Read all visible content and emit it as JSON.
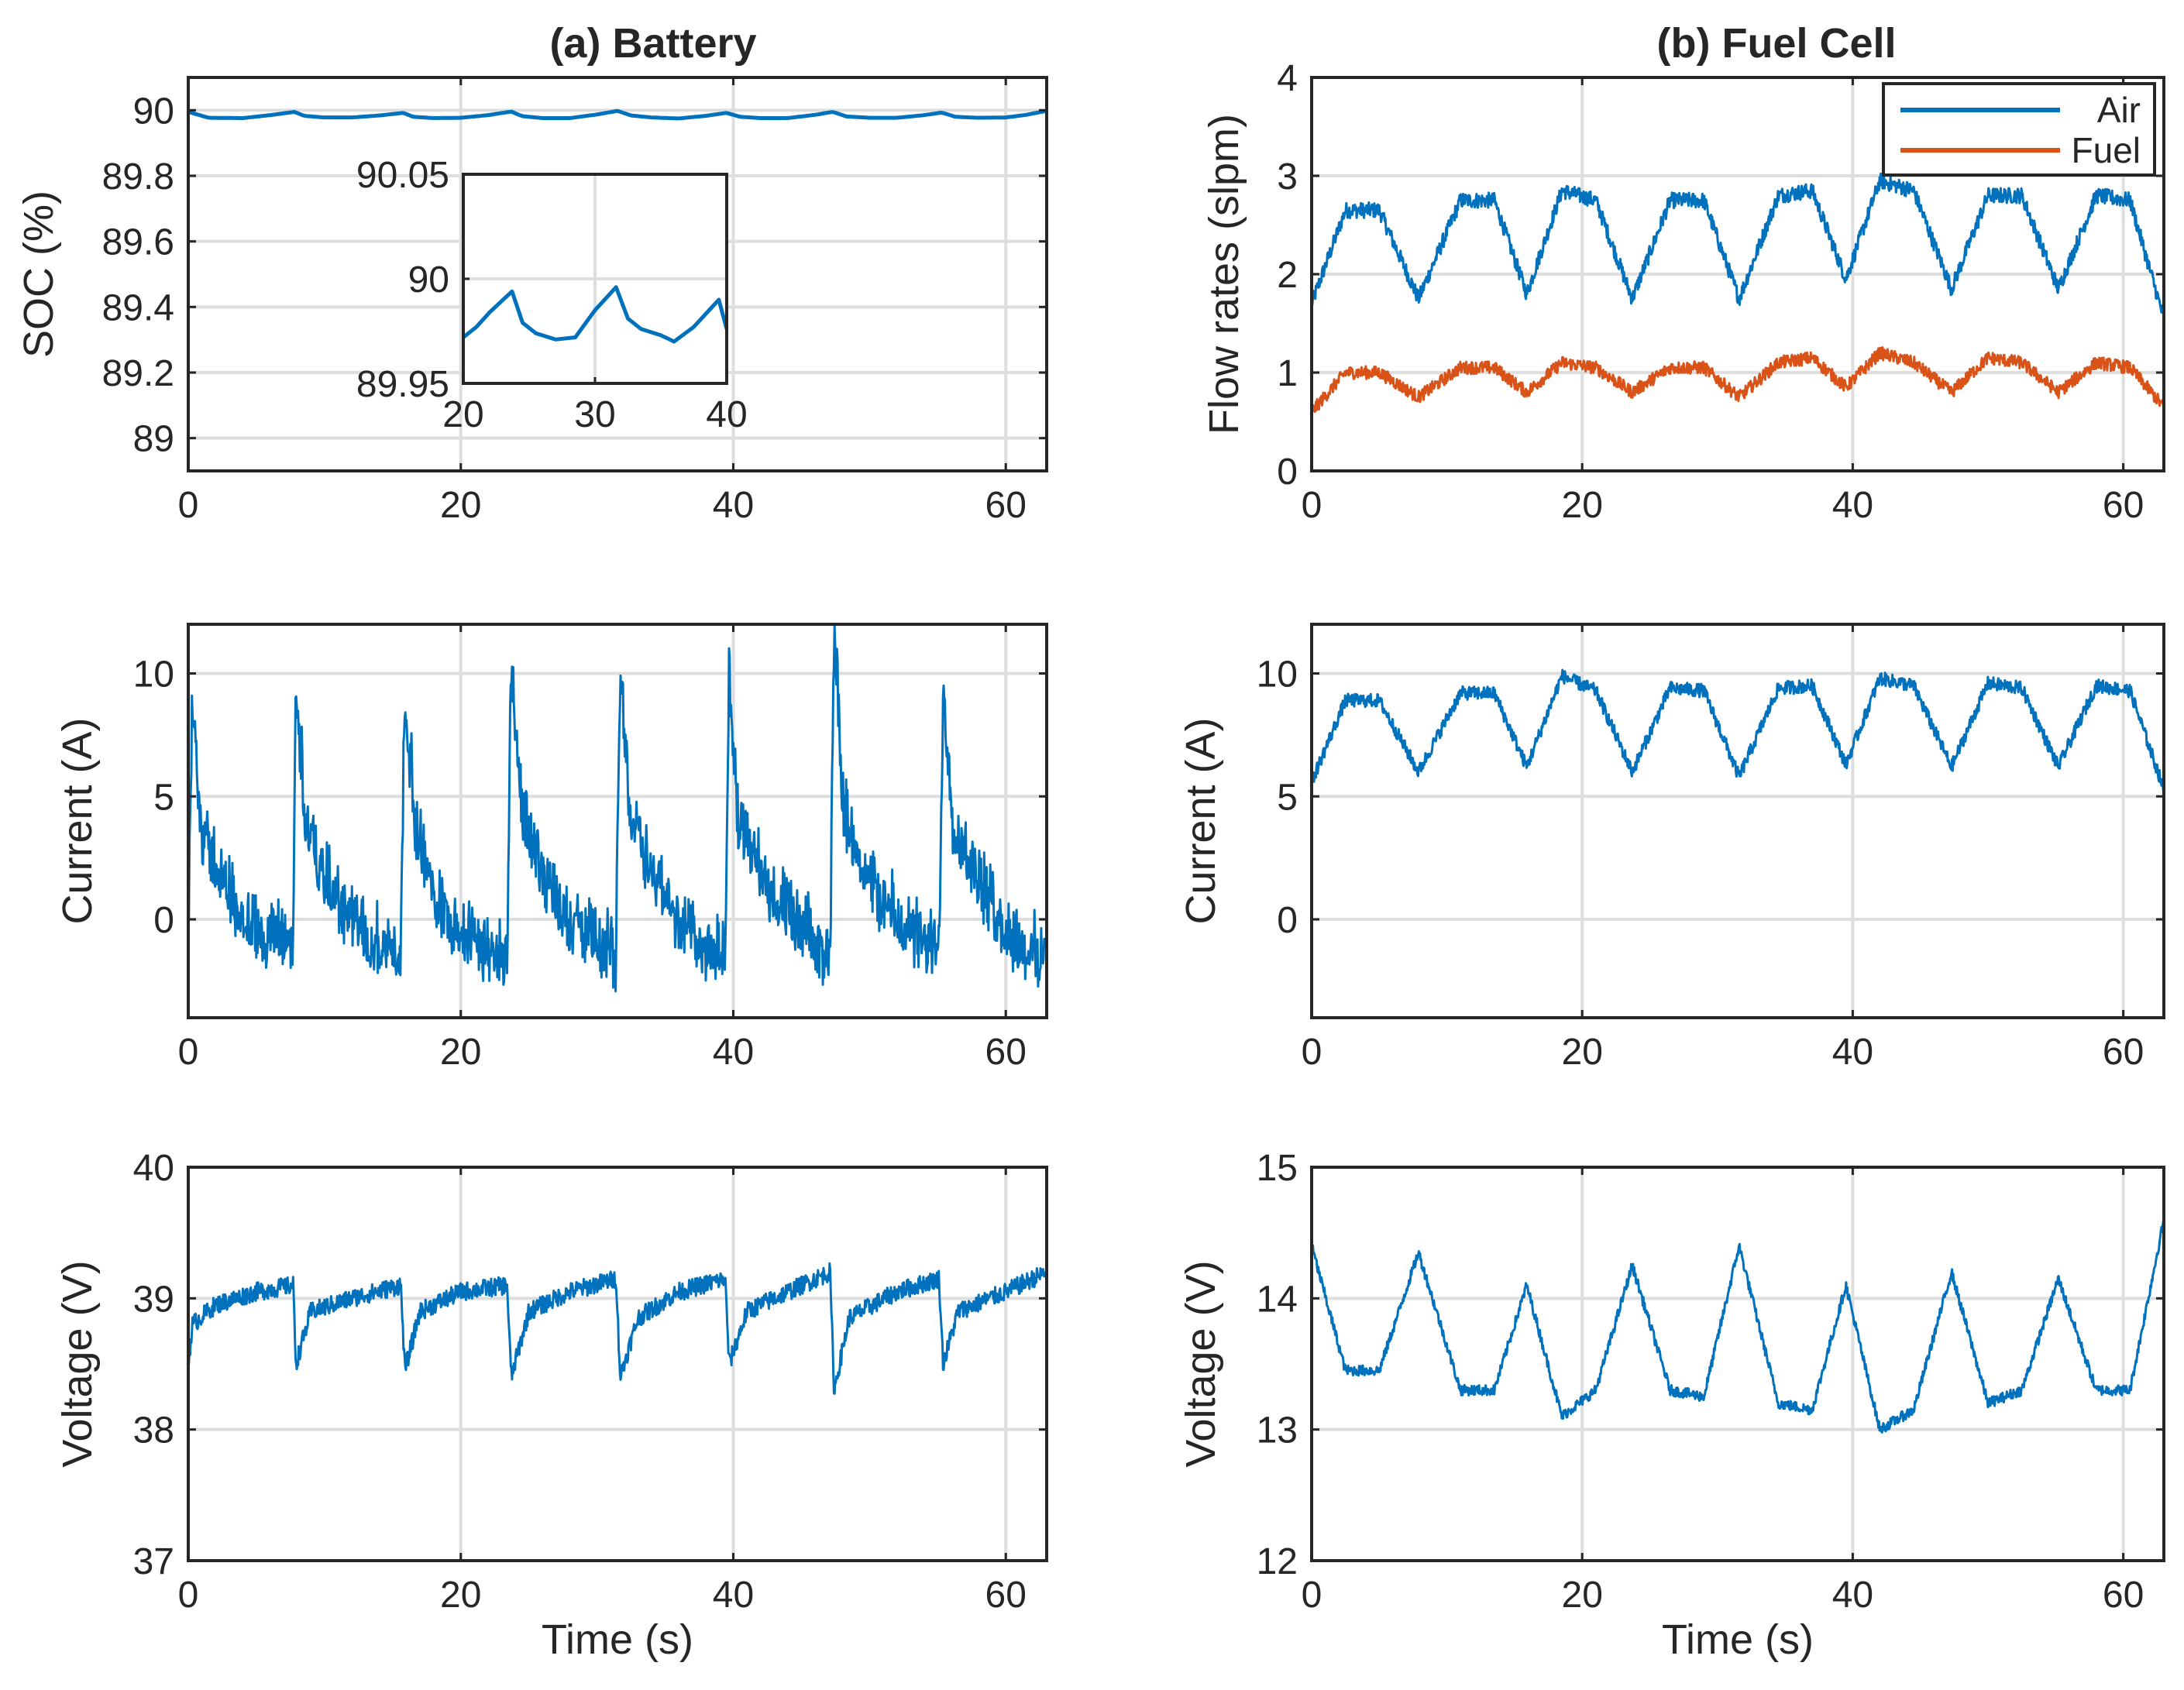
{
  "figure": {
    "title_left": "(a) Battery",
    "title_right": "(b) Fuel Cell"
  },
  "colors": {
    "blue": "#0072BD",
    "orange": "#D95319",
    "grid": "#DEDEDE",
    "axes": "#262626"
  },
  "chart_data": [
    {
      "id": "battery-soc",
      "type": "line",
      "title": "(a) Battery",
      "xlabel": "",
      "ylabel": "SOC (%)",
      "xlim": [
        0,
        63
      ],
      "ylim": [
        88.9,
        90.1
      ],
      "xticks": [
        0,
        20,
        40,
        60
      ],
      "xtick_labels": [
        "0",
        "20",
        "40",
        "60"
      ],
      "yticks": [
        89,
        89.2,
        89.4,
        89.6,
        89.8,
        90
      ],
      "ytick_labels": [
        "89",
        "89.2",
        "89.4",
        "89.6",
        "89.8",
        "90"
      ],
      "grid": true,
      "series": [
        {
          "name": "SOC",
          "color": "#0072BD",
          "x": [
            0,
            1.5,
            4,
            6,
            7.8,
            8.5,
            10,
            12,
            14,
            15.8,
            16.5,
            18,
            20,
            22,
            23.7,
            24.5,
            26,
            28,
            30,
            31.5,
            32.5,
            34,
            36,
            38,
            39.5,
            40.5,
            42,
            44,
            46,
            47.3,
            48.3,
            50,
            52,
            54,
            55.3,
            56.3,
            58,
            60,
            61.5,
            63
          ],
          "values": [
            89.995,
            89.977,
            89.976,
            89.985,
            89.995,
            89.983,
            89.978,
            89.978,
            89.984,
            89.992,
            89.98,
            89.976,
            89.977,
            89.985,
            89.996,
            89.982,
            89.976,
            89.976,
            89.987,
            89.998,
            89.984,
            89.978,
            89.975,
            89.983,
            89.992,
            89.98,
            89.976,
            89.976,
            89.986,
            89.995,
            89.981,
            89.977,
            89.977,
            89.985,
            89.993,
            89.98,
            89.977,
            89.978,
            89.986,
            89.998
          ]
        }
      ],
      "inset": {
        "xlim": [
          20,
          40
        ],
        "ylim": [
          89.95,
          90.05
        ],
        "xticks": [
          20,
          30,
          40
        ],
        "xtick_labels": [
          "20",
          "30",
          "40"
        ],
        "yticks": [
          89.95,
          90,
          90.05
        ],
        "ytick_labels": [
          "89.95",
          "90",
          "90.05"
        ],
        "x": [
          20,
          21,
          22,
          23.7,
          24.5,
          25.5,
          27,
          28.5,
          30,
          31.6,
          32.5,
          33.5,
          35,
          36,
          37.5,
          39.4,
          40
        ],
        "values": [
          89.972,
          89.977,
          89.984,
          89.994,
          89.979,
          89.974,
          89.971,
          89.972,
          89.985,
          89.996,
          89.981,
          89.976,
          89.973,
          89.97,
          89.977,
          89.99,
          89.976
        ]
      }
    },
    {
      "id": "fc-flow",
      "type": "line",
      "title": "(b) Fuel Cell",
      "xlabel": "",
      "ylabel": "Flow rates (slpm)",
      "xlim": [
        0,
        63
      ],
      "ylim": [
        0,
        4
      ],
      "xticks": [
        0,
        20,
        40,
        60
      ],
      "xtick_labels": [
        "0",
        "20",
        "40",
        "60"
      ],
      "yticks": [
        0,
        1,
        2,
        3,
        4
      ],
      "ytick_labels": [
        "0",
        "1",
        "2",
        "3",
        "4"
      ],
      "grid": true,
      "legend": {
        "position": "top-right",
        "entries": [
          "Air",
          "Fuel"
        ]
      },
      "series": [
        {
          "name": "Air",
          "color": "#0072BD",
          "x": [
            0,
            2.5,
            5,
            7.9,
            11,
            13.5,
            15.9,
            18.5,
            21,
            23.7,
            26.5,
            29,
            31.6,
            34.5,
            37,
            39.5,
            42,
            44.5,
            47.3,
            50,
            52.5,
            55.2,
            58,
            60.5,
            63
          ],
          "values": [
            1.7,
            2.65,
            2.65,
            1.75,
            2.75,
            2.75,
            1.8,
            2.85,
            2.75,
            1.75,
            2.75,
            2.75,
            1.75,
            2.8,
            2.85,
            1.95,
            2.95,
            2.85,
            1.85,
            2.8,
            2.8,
            1.85,
            2.8,
            2.75,
            1.55
          ]
        },
        {
          "name": "Fuel",
          "color": "#D95319",
          "x": [
            0,
            2.5,
            5,
            7.9,
            11,
            13.5,
            15.9,
            18.5,
            21,
            23.7,
            26.5,
            29,
            31.6,
            34.5,
            37,
            39.5,
            42,
            44.5,
            47.3,
            50,
            52.5,
            55.2,
            58,
            60.5,
            63
          ],
          "values": [
            0.6,
            1.0,
            1.0,
            0.75,
            1.05,
            1.05,
            0.8,
            1.1,
            1.05,
            0.8,
            1.05,
            1.05,
            0.75,
            1.1,
            1.15,
            0.85,
            1.2,
            1.1,
            0.8,
            1.15,
            1.1,
            0.8,
            1.1,
            1.05,
            0.65
          ]
        }
      ]
    },
    {
      "id": "battery-current",
      "type": "line",
      "title": "",
      "xlabel": "",
      "ylabel": "Current (A)",
      "xlim": [
        0,
        63
      ],
      "ylim": [
        -4,
        12
      ],
      "xticks": [
        0,
        20,
        40,
        60
      ],
      "xtick_labels": [
        "0",
        "20",
        "40",
        "60"
      ],
      "yticks": [
        0,
        5,
        10
      ],
      "ytick_labels": [
        "0",
        "5",
        "10"
      ],
      "grid": true,
      "series": [
        {
          "name": "Battery current",
          "color": "#0072BD",
          "x": [
            0,
            0.3,
            1,
            3,
            5,
            7.7,
            7.9,
            8.6,
            10,
            12,
            14,
            15.6,
            15.9,
            16.6,
            18,
            20,
            22,
            23.4,
            23.7,
            24.4,
            26,
            28,
            30,
            31.4,
            31.7,
            32.4,
            34,
            36,
            38,
            39.4,
            39.7,
            40.4,
            42,
            44,
            46,
            47.1,
            47.4,
            48.1,
            50,
            52,
            54,
            55.1,
            55.4,
            56.1,
            58,
            60,
            62,
            63
          ],
          "values": [
            -1,
            8.8,
            3,
            0.5,
            -1,
            -1.5,
            9.2,
            3.5,
            1,
            -0.5,
            -1.5,
            -1.8,
            9.1,
            3.5,
            0.5,
            -1,
            -1.8,
            -2,
            10.4,
            4,
            1.5,
            -0.5,
            -1.5,
            -2,
            10.1,
            4,
            1.5,
            -0.5,
            -1.7,
            -2,
            9.2,
            3.5,
            1.5,
            -0.5,
            -1.5,
            -2,
            11.4,
            4,
            1,
            -0.5,
            -1.5,
            -1.8,
            9.2,
            3.5,
            1,
            -1,
            -2,
            -1.5
          ]
        }
      ]
    },
    {
      "id": "fc-current",
      "type": "line",
      "title": "",
      "xlabel": "",
      "ylabel": "Current (A)",
      "xlim": [
        0,
        63
      ],
      "ylim": [
        -4,
        12
      ],
      "xticks": [
        0,
        20,
        40,
        60
      ],
      "xtick_labels": [
        "0",
        "20",
        "40",
        "60"
      ],
      "yticks": [
        0,
        5,
        10
      ],
      "ytick_labels": [
        "0",
        "5",
        "10"
      ],
      "grid": true,
      "series": [
        {
          "name": "Fuel cell current",
          "color": "#0072BD",
          "x": [
            0,
            2.5,
            5,
            7.9,
            11,
            13.5,
            15.9,
            18.5,
            21,
            23.7,
            26.5,
            29,
            31.6,
            34.5,
            37,
            39.5,
            42,
            44.5,
            47.3,
            50,
            52.5,
            55.2,
            58,
            60.5,
            63
          ],
          "values": [
            5.6,
            8.9,
            8.9,
            6.0,
            9.2,
            9.2,
            6.2,
            9.9,
            9.3,
            6.0,
            9.4,
            9.3,
            5.8,
            9.4,
            9.5,
            6.3,
            9.8,
            9.5,
            6.2,
            9.6,
            9.4,
            6.2,
            9.5,
            9.3,
            5.3
          ]
        }
      ]
    },
    {
      "id": "battery-voltage",
      "type": "line",
      "title": "",
      "xlabel": "Time (s)",
      "ylabel": "Voltage (V)",
      "xlim": [
        0,
        63
      ],
      "ylim": [
        37,
        40
      ],
      "xticks": [
        0,
        20,
        40,
        60
      ],
      "xtick_labels": [
        "0",
        "20",
        "40",
        "60"
      ],
      "yticks": [
        37,
        38,
        39,
        40
      ],
      "ytick_labels": [
        "37",
        "38",
        "39",
        "40"
      ],
      "grid": true,
      "series": [
        {
          "name": "Battery voltage",
          "color": "#0072BD",
          "x": [
            0,
            0.3,
            2,
            5,
            7.7,
            7.9,
            9,
            12,
            15.6,
            15.9,
            17,
            20,
            23.4,
            23.7,
            25,
            28,
            31.4,
            31.7,
            33,
            36,
            39.4,
            39.7,
            41,
            44,
            47.1,
            47.4,
            48.5,
            52,
            55.1,
            55.4,
            56.5,
            60,
            63
          ],
          "values": [
            38.5,
            38.8,
            38.95,
            39.05,
            39.1,
            38.5,
            38.9,
            39.0,
            39.1,
            38.45,
            38.9,
            39.05,
            39.1,
            38.4,
            38.9,
            39.05,
            39.15,
            38.4,
            38.85,
            39.05,
            39.15,
            38.5,
            38.9,
            39.05,
            39.2,
            38.3,
            38.85,
            39.05,
            39.15,
            38.5,
            38.9,
            39.05,
            39.2
          ]
        }
      ]
    },
    {
      "id": "fc-voltage",
      "type": "line",
      "title": "",
      "xlabel": "Time (s)",
      "ylabel": "Voltage (V)",
      "xlim": [
        0,
        63
      ],
      "ylim": [
        12,
        15
      ],
      "xticks": [
        0,
        20,
        40,
        60
      ],
      "xtick_labels": [
        "0",
        "20",
        "40",
        "60"
      ],
      "yticks": [
        12,
        13,
        14,
        15
      ],
      "ytick_labels": [
        "12",
        "13",
        "14",
        "15"
      ],
      "grid": true,
      "series": [
        {
          "name": "Fuel cell voltage",
          "color": "#0072BD",
          "x": [
            0,
            2.5,
            5,
            7.9,
            11,
            13.5,
            15.9,
            18.5,
            21,
            23.7,
            26.5,
            29,
            31.6,
            34.5,
            37,
            39.5,
            42,
            44.5,
            47.3,
            50,
            52.5,
            55.2,
            58,
            60.5,
            63
          ],
          "values": [
            14.4,
            13.45,
            13.45,
            14.35,
            13.3,
            13.3,
            14.1,
            13.1,
            13.3,
            14.25,
            13.3,
            13.25,
            14.4,
            13.2,
            13.15,
            14.1,
            13.0,
            13.15,
            14.2,
            13.2,
            13.3,
            14.15,
            13.3,
            13.3,
            14.6
          ]
        }
      ]
    }
  ]
}
